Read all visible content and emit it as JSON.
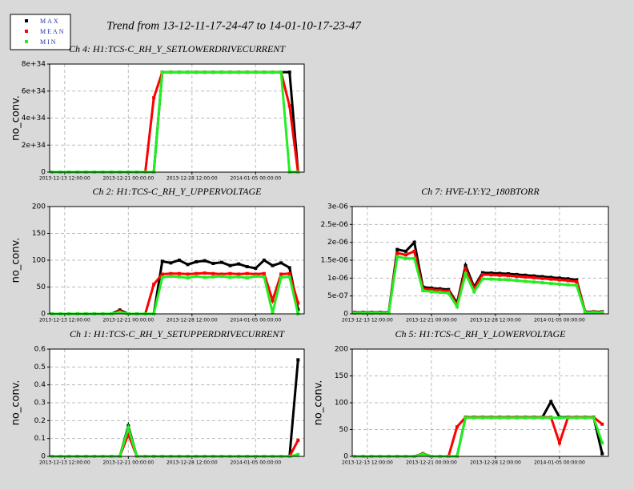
{
  "title": "Trend from 13-12-11-17-24-47 to 14-01-10-17-23-47",
  "chart_data": [
    {
      "type": "scatter",
      "title": "Ch 4: H1:TCS-C_RH_Y_SETLOWERDRIVECURRENT",
      "y_label": "no_conv.",
      "x": [
        "2013-12-12 00:00:00",
        "2013-12-13 00:00:00",
        "2013-12-14 00:00:00",
        "2013-12-15 00:00:00",
        "2013-12-16 00:00:00",
        "2013-12-17 00:00:00",
        "2013-12-18 00:00:00",
        "2013-12-19 00:00:00",
        "2013-12-20 00:00:00",
        "2013-12-21 00:00:00",
        "2013-12-22 00:00:00",
        "2013-12-23 00:00:00",
        "2013-12-24 00:00:00",
        "2013-12-25 00:00:00",
        "2013-12-26 00:00:00",
        "2013-12-27 00:00:00",
        "2013-12-28 00:00:00",
        "2013-12-29 00:00:00",
        "2013-12-30 00:00:00",
        "2013-12-31 00:00:00",
        "2014-01-01 00:00:00",
        "2014-01-02 00:00:00",
        "2014-01-03 00:00:00",
        "2014-01-04 00:00:00",
        "2014-01-05 00:00:00",
        "2014-01-06 00:00:00",
        "2014-01-07 00:00:00",
        "2014-01-08 00:00:00",
        "2014-01-09 00:00:00",
        "2014-01-10 00:00:00"
      ],
      "xlim": [
        "2013-12-11 17:24:47",
        "2014-01-10 17:23:47"
      ],
      "xticks": [
        "2013-12-13 12:00:00",
        "2013-12-21 00:00:00",
        "2013-12-28 12:00:00",
        "2014-01-05 00:00:00"
      ],
      "ylim": [
        0,
        8e+34
      ],
      "yticks": [
        0,
        {
          "value": 2e+34,
          "label": "2e+34"
        },
        {
          "value": 4e+34,
          "label": "4e+34"
        },
        {
          "value": 6e+34,
          "label": "6e+34"
        },
        {
          "value": 8e+34,
          "label": "8e+34"
        }
      ],
      "grid": true,
      "series": [
        {
          "name": "MAX",
          "color": "#000000",
          "values": [
            0,
            0,
            0,
            0,
            0,
            0,
            0,
            0,
            0,
            0,
            0,
            0,
            0,
            7.4e+34,
            7.4e+34,
            7.4e+34,
            7.4e+34,
            7.4e+34,
            7.4e+34,
            7.4e+34,
            7.4e+34,
            7.4e+34,
            7.4e+34,
            7.4e+34,
            7.4e+34,
            7.4e+34,
            7.4e+34,
            7.4e+34,
            7.4e+34,
            0
          ]
        },
        {
          "name": "MEAN",
          "color": "#ff0000",
          "values": [
            0,
            0,
            0,
            0,
            0,
            0,
            0,
            0,
            0,
            0,
            0,
            0,
            5.5e+34,
            7.4e+34,
            7.4e+34,
            7.4e+34,
            7.4e+34,
            7.4e+34,
            7.4e+34,
            7.4e+34,
            7.4e+34,
            7.4e+34,
            7.4e+34,
            7.4e+34,
            7.4e+34,
            7.4e+34,
            7.4e+34,
            7.4e+34,
            4.9e+34,
            0
          ]
        },
        {
          "name": "MIN",
          "color": "#22ee22",
          "values": [
            0,
            0,
            0,
            0,
            0,
            0,
            0,
            0,
            0,
            0,
            0,
            0,
            0,
            7.4e+34,
            7.4e+34,
            7.4e+34,
            7.4e+34,
            7.4e+34,
            7.4e+34,
            7.4e+34,
            7.4e+34,
            7.4e+34,
            7.4e+34,
            7.4e+34,
            7.4e+34,
            7.4e+34,
            7.4e+34,
            7.4e+34,
            0,
            0
          ]
        }
      ]
    },
    {
      "type": "scatter",
      "title": "Ch 2: H1:TCS-C_RH_Y_UPPERVOLTAGE",
      "y_label": "no_conv.",
      "x": [
        "2013-12-12 00:00:00",
        "2013-12-13 00:00:00",
        "2013-12-14 00:00:00",
        "2013-12-15 00:00:00",
        "2013-12-16 00:00:00",
        "2013-12-17 00:00:00",
        "2013-12-18 00:00:00",
        "2013-12-19 00:00:00",
        "2013-12-20 00:00:00",
        "2013-12-21 00:00:00",
        "2013-12-22 00:00:00",
        "2013-12-23 00:00:00",
        "2013-12-24 00:00:00",
        "2013-12-25 00:00:00",
        "2013-12-26 00:00:00",
        "2013-12-27 00:00:00",
        "2013-12-28 00:00:00",
        "2013-12-29 00:00:00",
        "2013-12-30 00:00:00",
        "2013-12-31 00:00:00",
        "2014-01-01 00:00:00",
        "2014-01-02 00:00:00",
        "2014-01-03 00:00:00",
        "2014-01-04 00:00:00",
        "2014-01-05 00:00:00",
        "2014-01-06 00:00:00",
        "2014-01-07 00:00:00",
        "2014-01-08 00:00:00",
        "2014-01-09 00:00:00",
        "2014-01-10 00:00:00"
      ],
      "xlim": [
        "2013-12-11 17:24:47",
        "2014-01-10 17:23:47"
      ],
      "xticks": [
        "2013-12-13 12:00:00",
        "2013-12-21 00:00:00",
        "2013-12-28 12:00:00",
        "2014-01-05 00:00:00"
      ],
      "ylim": [
        0,
        200
      ],
      "yticks": [
        0,
        50,
        100,
        150,
        200
      ],
      "grid": true,
      "series": [
        {
          "name": "MAX",
          "color": "#000000",
          "values": [
            0,
            0,
            0,
            0,
            0,
            0,
            0,
            0,
            7,
            0,
            0,
            0,
            0,
            98,
            95,
            100,
            92,
            97,
            99,
            94,
            96,
            90,
            93,
            88,
            85,
            100,
            90,
            95,
            86,
            8
          ]
        },
        {
          "name": "MEAN",
          "color": "#ff0000",
          "values": [
            0,
            0,
            0,
            0,
            0,
            0,
            0,
            0,
            5,
            0,
            0,
            0,
            55,
            74,
            75,
            75,
            74,
            75,
            76,
            75,
            74,
            75,
            74,
            75,
            74,
            75,
            25,
            74,
            75,
            20
          ]
        },
        {
          "name": "MIN",
          "color": "#22ee22",
          "values": [
            0,
            0,
            0,
            0,
            0,
            0,
            0,
            0,
            3,
            0,
            0,
            0,
            0,
            68,
            70,
            69,
            67,
            70,
            68,
            69,
            70,
            68,
            69,
            67,
            70,
            69,
            2,
            68,
            69,
            0
          ]
        }
      ]
    },
    {
      "type": "scatter",
      "title": "Ch 7: HVE-LY:Y2_180BTORR",
      "x": [
        "2013-12-12 00:00:00",
        "2013-12-13 00:00:00",
        "2013-12-14 00:00:00",
        "2013-12-15 00:00:00",
        "2013-12-16 00:00:00",
        "2013-12-17 00:00:00",
        "2013-12-18 00:00:00",
        "2013-12-19 00:00:00",
        "2013-12-20 00:00:00",
        "2013-12-21 00:00:00",
        "2013-12-22 00:00:00",
        "2013-12-23 00:00:00",
        "2013-12-24 00:00:00",
        "2013-12-25 00:00:00",
        "2013-12-26 00:00:00",
        "2013-12-27 00:00:00",
        "2013-12-28 00:00:00",
        "2013-12-29 00:00:00",
        "2013-12-30 00:00:00",
        "2013-12-31 00:00:00",
        "2014-01-01 00:00:00",
        "2014-01-02 00:00:00",
        "2014-01-03 00:00:00",
        "2014-01-04 00:00:00",
        "2014-01-05 00:00:00",
        "2014-01-06 00:00:00",
        "2014-01-07 00:00:00",
        "2014-01-08 00:00:00",
        "2014-01-09 00:00:00",
        "2014-01-10 00:00:00"
      ],
      "xlim": [
        "2013-12-11 17:24:47",
        "2014-01-10 17:23:47"
      ],
      "xticks": [
        "2013-12-13 12:00:00",
        "2013-12-21 00:00:00",
        "2013-12-28 12:00:00",
        "2014-01-05 00:00:00"
      ],
      "ylim": [
        0,
        3e-06
      ],
      "yticks": [
        0,
        {
          "value": 5e-07,
          "label": "5e-07"
        },
        {
          "value": 1e-06,
          "label": "1e-06"
        },
        {
          "value": 1.5e-06,
          "label": "1.5e-06"
        },
        {
          "value": 2e-06,
          "label": "2e-06"
        },
        {
          "value": 2.5e-06,
          "label": "2.5e-06"
        },
        {
          "value": 3e-06,
          "label": "3e-06"
        }
      ],
      "grid": true,
      "series": [
        {
          "name": "MAX",
          "color": "#000000",
          "values": [
            4e-08,
            4e-08,
            4e-08,
            4e-08,
            4e-08,
            1.8e-06,
            1.75e-06,
            2e-06,
            7.5e-07,
            7.2e-07,
            7e-07,
            6.8e-07,
            3e-07,
            1.35e-06,
            7.5e-07,
            1.15e-06,
            1.14e-06,
            1.13e-06,
            1.12e-06,
            1.1e-06,
            1.08e-06,
            1.06e-06,
            1.04e-06,
            1.02e-06,
            1e-06,
            9.8e-07,
            9.5e-07,
            6e-08,
            6e-08,
            6e-08
          ]
        },
        {
          "name": "MEAN",
          "color": "#ff0000",
          "values": [
            3e-08,
            3e-08,
            3e-08,
            3e-08,
            3e-08,
            1.7e-06,
            1.65e-06,
            1.75e-06,
            7e-07,
            6.8e-07,
            6.6e-07,
            6.4e-07,
            2.5e-07,
            1.25e-06,
            7e-07,
            1.1e-06,
            1.09e-06,
            1.08e-06,
            1.07e-06,
            1.05e-06,
            1.03e-06,
            1.01e-06,
            9.9e-07,
            9.7e-07,
            9.5e-07,
            9.3e-07,
            9e-07,
            5e-08,
            5e-08,
            5e-08
          ]
        },
        {
          "name": "MIN",
          "color": "#22ee22",
          "values": [
            2e-08,
            2e-08,
            2e-08,
            2e-08,
            2e-08,
            1.6e-06,
            1.55e-06,
            1.55e-06,
            6.5e-07,
            6.2e-07,
            6e-07,
            5.8e-07,
            2e-07,
            1.12e-06,
            6.2e-07,
            9.8e-07,
            9.7e-07,
            9.6e-07,
            9.5e-07,
            9.3e-07,
            9.1e-07,
            8.9e-07,
            8.7e-07,
            8.5e-07,
            8.3e-07,
            8.1e-07,
            8e-07,
            4e-08,
            4e-08,
            4e-08
          ]
        }
      ]
    },
    {
      "type": "scatter",
      "title": "Ch 1: H1:TCS-C_RH_Y_SETUPPERDRIVECURRENT",
      "y_label": "no_conv.",
      "x": [
        "2013-12-12 00:00:00",
        "2013-12-13 00:00:00",
        "2013-12-14 00:00:00",
        "2013-12-15 00:00:00",
        "2013-12-16 00:00:00",
        "2013-12-17 00:00:00",
        "2013-12-18 00:00:00",
        "2013-12-19 00:00:00",
        "2013-12-20 00:00:00",
        "2013-12-21 00:00:00",
        "2013-12-22 00:00:00",
        "2013-12-23 00:00:00",
        "2013-12-24 00:00:00",
        "2013-12-25 00:00:00",
        "2013-12-26 00:00:00",
        "2013-12-27 00:00:00",
        "2013-12-28 00:00:00",
        "2013-12-29 00:00:00",
        "2013-12-30 00:00:00",
        "2013-12-31 00:00:00",
        "2014-01-01 00:00:00",
        "2014-01-02 00:00:00",
        "2014-01-03 00:00:00",
        "2014-01-04 00:00:00",
        "2014-01-05 00:00:00",
        "2014-01-06 00:00:00",
        "2014-01-07 00:00:00",
        "2014-01-08 00:00:00",
        "2014-01-09 00:00:00",
        "2014-01-10 00:00:00"
      ],
      "xlim": [
        "2013-12-11 17:24:47",
        "2014-01-10 17:23:47"
      ],
      "xticks": [
        "2013-12-13 12:00:00",
        "2013-12-21 00:00:00",
        "2013-12-28 12:00:00",
        "2014-01-05 00:00:00"
      ],
      "ylim": [
        0,
        0.6
      ],
      "yticks": [
        0,
        0.1,
        0.2,
        0.3,
        0.4,
        0.5,
        0.6
      ],
      "grid": true,
      "series": [
        {
          "name": "MAX",
          "color": "#000000",
          "values": [
            0,
            0,
            0,
            0,
            0,
            0,
            0,
            0,
            0,
            0.17,
            0,
            0,
            0,
            0,
            0,
            0,
            0,
            0,
            0,
            0,
            0,
            0,
            0,
            0,
            0,
            0,
            0,
            0,
            0,
            0.54
          ]
        },
        {
          "name": "MEAN",
          "color": "#ff0000",
          "values": [
            0,
            0,
            0,
            0,
            0,
            0,
            0,
            0,
            0,
            0.125,
            0,
            0,
            0,
            0,
            0,
            0,
            0,
            0,
            0,
            0,
            0,
            0,
            0,
            0,
            0,
            0,
            0,
            0,
            0,
            0.09
          ]
        },
        {
          "name": "MIN",
          "color": "#22ee22",
          "values": [
            0,
            0,
            0,
            0,
            0,
            0,
            0,
            0,
            0,
            0.16,
            0,
            0,
            0,
            0,
            0,
            0,
            0,
            0,
            0,
            0,
            0,
            0,
            0,
            0,
            0,
            0,
            0,
            0,
            0,
            0.01
          ]
        }
      ]
    },
    {
      "type": "scatter",
      "title": "Ch 5: H1:TCS-C_RH_Y_LOWERVOLTAGE",
      "y_label": "no_conv.",
      "x": [
        "2013-12-12 00:00:00",
        "2013-12-13 00:00:00",
        "2013-12-14 00:00:00",
        "2013-12-15 00:00:00",
        "2013-12-16 00:00:00",
        "2013-12-17 00:00:00",
        "2013-12-18 00:00:00",
        "2013-12-19 00:00:00",
        "2013-12-20 00:00:00",
        "2013-12-21 00:00:00",
        "2013-12-22 00:00:00",
        "2013-12-23 00:00:00",
        "2013-12-24 00:00:00",
        "2013-12-25 00:00:00",
        "2013-12-26 00:00:00",
        "2013-12-27 00:00:00",
        "2013-12-28 00:00:00",
        "2013-12-29 00:00:00",
        "2013-12-30 00:00:00",
        "2013-12-31 00:00:00",
        "2014-01-01 00:00:00",
        "2014-01-02 00:00:00",
        "2014-01-03 00:00:00",
        "2014-01-04 00:00:00",
        "2014-01-05 00:00:00",
        "2014-01-06 00:00:00",
        "2014-01-07 00:00:00",
        "2014-01-08 00:00:00",
        "2014-01-09 00:00:00",
        "2014-01-10 00:00:00"
      ],
      "xlim": [
        "2013-12-11 17:24:47",
        "2014-01-10 17:23:47"
      ],
      "xticks": [
        "2013-12-13 12:00:00",
        "2013-12-21 00:00:00",
        "2013-12-28 12:00:00",
        "2014-01-05 00:00:00"
      ],
      "ylim": [
        0,
        200
      ],
      "yticks": [
        0,
        50,
        100,
        150,
        200
      ],
      "grid": true,
      "series": [
        {
          "name": "MAX",
          "color": "#000000",
          "values": [
            0,
            0,
            0,
            0,
            0,
            0,
            0,
            0,
            5,
            0,
            0,
            0,
            0,
            73,
            73,
            73,
            73,
            73,
            73,
            73,
            73,
            73,
            73,
            102,
            73,
            73,
            73,
            73,
            73,
            5
          ]
        },
        {
          "name": "MEAN",
          "color": "#ff0000",
          "values": [
            0,
            0,
            0,
            0,
            0,
            0,
            0,
            0,
            5,
            0,
            0,
            0,
            55,
            73,
            73,
            73,
            73,
            73,
            73,
            73,
            73,
            73,
            73,
            73,
            25,
            73,
            73,
            73,
            73,
            60
          ]
        },
        {
          "name": "MIN",
          "color": "#22ee22",
          "values": [
            0,
            0,
            0,
            0,
            0,
            0,
            0,
            0,
            4,
            0,
            0,
            0,
            0,
            72,
            72,
            72,
            72,
            72,
            72,
            72,
            72,
            72,
            72,
            72,
            72,
            72,
            72,
            72,
            72,
            25
          ]
        }
      ]
    }
  ]
}
